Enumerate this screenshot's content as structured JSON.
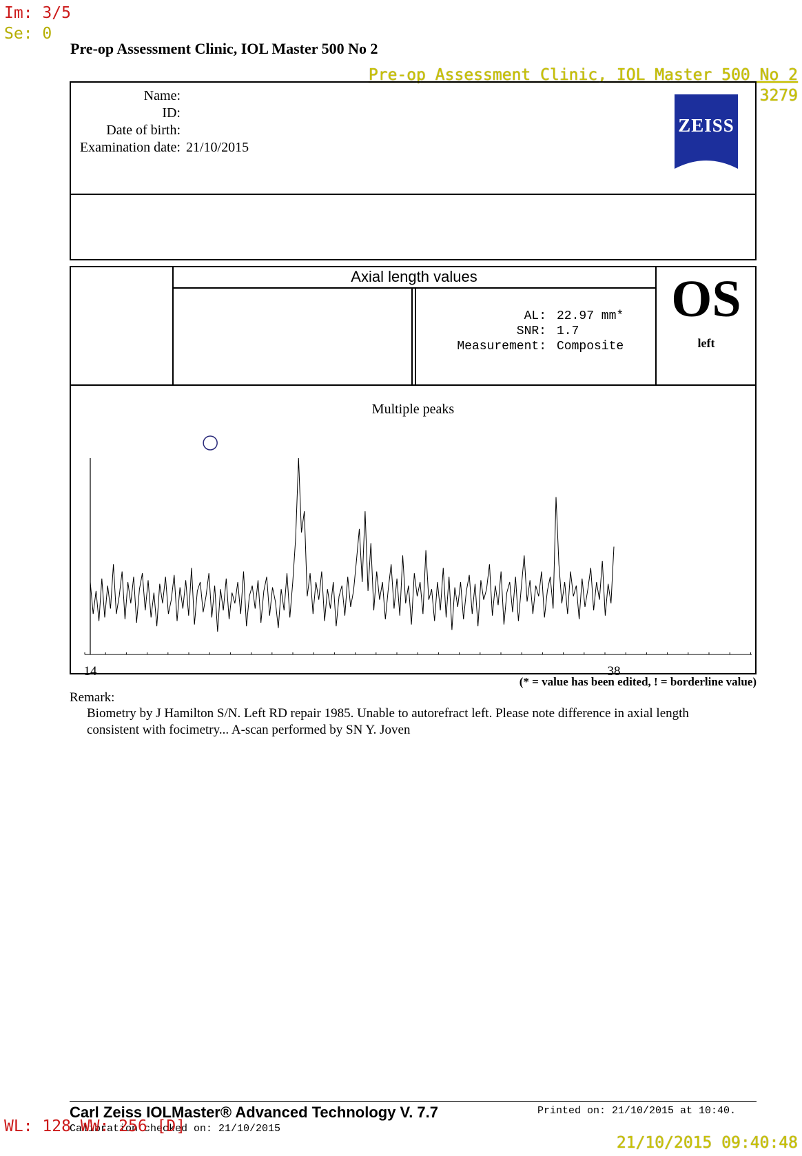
{
  "overlay": {
    "image_index": "Im: 3/5",
    "series": "Se: 0",
    "clinic_overlay": "Pre-op Assessment Clinic, IOL Master 500 No 2",
    "id_number": "3279",
    "window_level": "WL: 128 WW: 256 [D]",
    "timestamp": "21/10/2015 09:40:48"
  },
  "header": {
    "title": "Pre-op Assessment Clinic, IOL Master 500 No 2"
  },
  "patient": {
    "name_label": "Name:",
    "name_value": "",
    "id_label": "ID:",
    "id_value": "",
    "dob_label": "Date of birth:",
    "dob_value": "",
    "exam_label": "Examination date:",
    "exam_value": "21/10/2015"
  },
  "logo": {
    "text": "ZEISS",
    "color": "#1c2f9c"
  },
  "axial": {
    "title": "Axial length values",
    "al_label": "AL:",
    "al_value": "22.97 mm*",
    "snr_label": "SNR:",
    "snr_value": "1.7",
    "measurement_label": "Measurement:",
    "measurement_value": "Composite"
  },
  "eye": {
    "code": "OS",
    "side": "left"
  },
  "chart_data": {
    "type": "line",
    "title": "Multiple peaks",
    "xlim": [
      14,
      38
    ],
    "x_tick_labels": [
      "14",
      "38"
    ],
    "series": [
      {
        "values": [
          0.3,
          0.12,
          0.25,
          0.08,
          0.32,
          0.1,
          0.28,
          0.15,
          0.4,
          0.12,
          0.22,
          0.36,
          0.09,
          0.3,
          0.18,
          0.33,
          0.07,
          0.26,
          0.35,
          0.14,
          0.31,
          0.1,
          0.24,
          0.05,
          0.29,
          0.18,
          0.33,
          0.12,
          0.2,
          0.34,
          0.08,
          0.27,
          0.15,
          0.31,
          0.11,
          0.38,
          0.06,
          0.25,
          0.3,
          0.13,
          0.22,
          0.35,
          0.1,
          0.28,
          0.02,
          0.26,
          0.14,
          0.32,
          0.09,
          0.24,
          0.18,
          0.3,
          0.12,
          0.36,
          0.05,
          0.22,
          0.28,
          0.15,
          0.31,
          0.07,
          0.25,
          0.33,
          0.11,
          0.27,
          0.19,
          0.04,
          0.26,
          0.14,
          0.35,
          0.1,
          0.3,
          0.55,
          1.0,
          0.58,
          0.7,
          0.22,
          0.35,
          0.12,
          0.3,
          0.2,
          0.36,
          0.08,
          0.26,
          0.15,
          0.3,
          0.05,
          0.22,
          0.28,
          0.11,
          0.33,
          0.16,
          0.25,
          0.42,
          0.6,
          0.3,
          0.7,
          0.25,
          0.52,
          0.14,
          0.36,
          0.2,
          0.3,
          0.09,
          0.26,
          0.4,
          0.15,
          0.32,
          0.11,
          0.45,
          0.18,
          0.28,
          0.06,
          0.35,
          0.22,
          0.3,
          0.12,
          0.48,
          0.2,
          0.26,
          0.08,
          0.3,
          0.14,
          0.38,
          0.1,
          0.33,
          0.03,
          0.27,
          0.16,
          0.3,
          0.09,
          0.25,
          0.34,
          0.12,
          0.29,
          0.05,
          0.31,
          0.2,
          0.26,
          0.4,
          0.11,
          0.28,
          0.17,
          0.36,
          0.06,
          0.24,
          0.3,
          0.13,
          0.33,
          0.08,
          0.27,
          0.45,
          0.19,
          0.31,
          0.12,
          0.28,
          0.22,
          0.36,
          0.1,
          0.25,
          0.33,
          0.15,
          0.78,
          0.4,
          0.18,
          0.3,
          0.12,
          0.36,
          0.22,
          0.28,
          0.09,
          0.32,
          0.16,
          0.26,
          0.38,
          0.14,
          0.3,
          0.2,
          0.42,
          0.11,
          0.29,
          0.18,
          0.5
        ]
      }
    ],
    "peak_marker_x": 19.5
  },
  "footnote": "(* = value has been edited, ! = borderline value)",
  "remark": {
    "label": "Remark:",
    "line1": "Biometry by J Hamilton S/N.  Left RD repair 1985.  Unable to autorefract left. Please note difference in axial length",
    "line2": "consistent with focimetry...   A-scan performed by SN Y. Joven"
  },
  "footer": {
    "product": "Carl Zeiss IOLMaster® Advanced Technology V. 7.7",
    "calibration": "Calibration checked on: 21/10/2015",
    "printed": "Printed on: 21/10/2015 at 10:40."
  }
}
